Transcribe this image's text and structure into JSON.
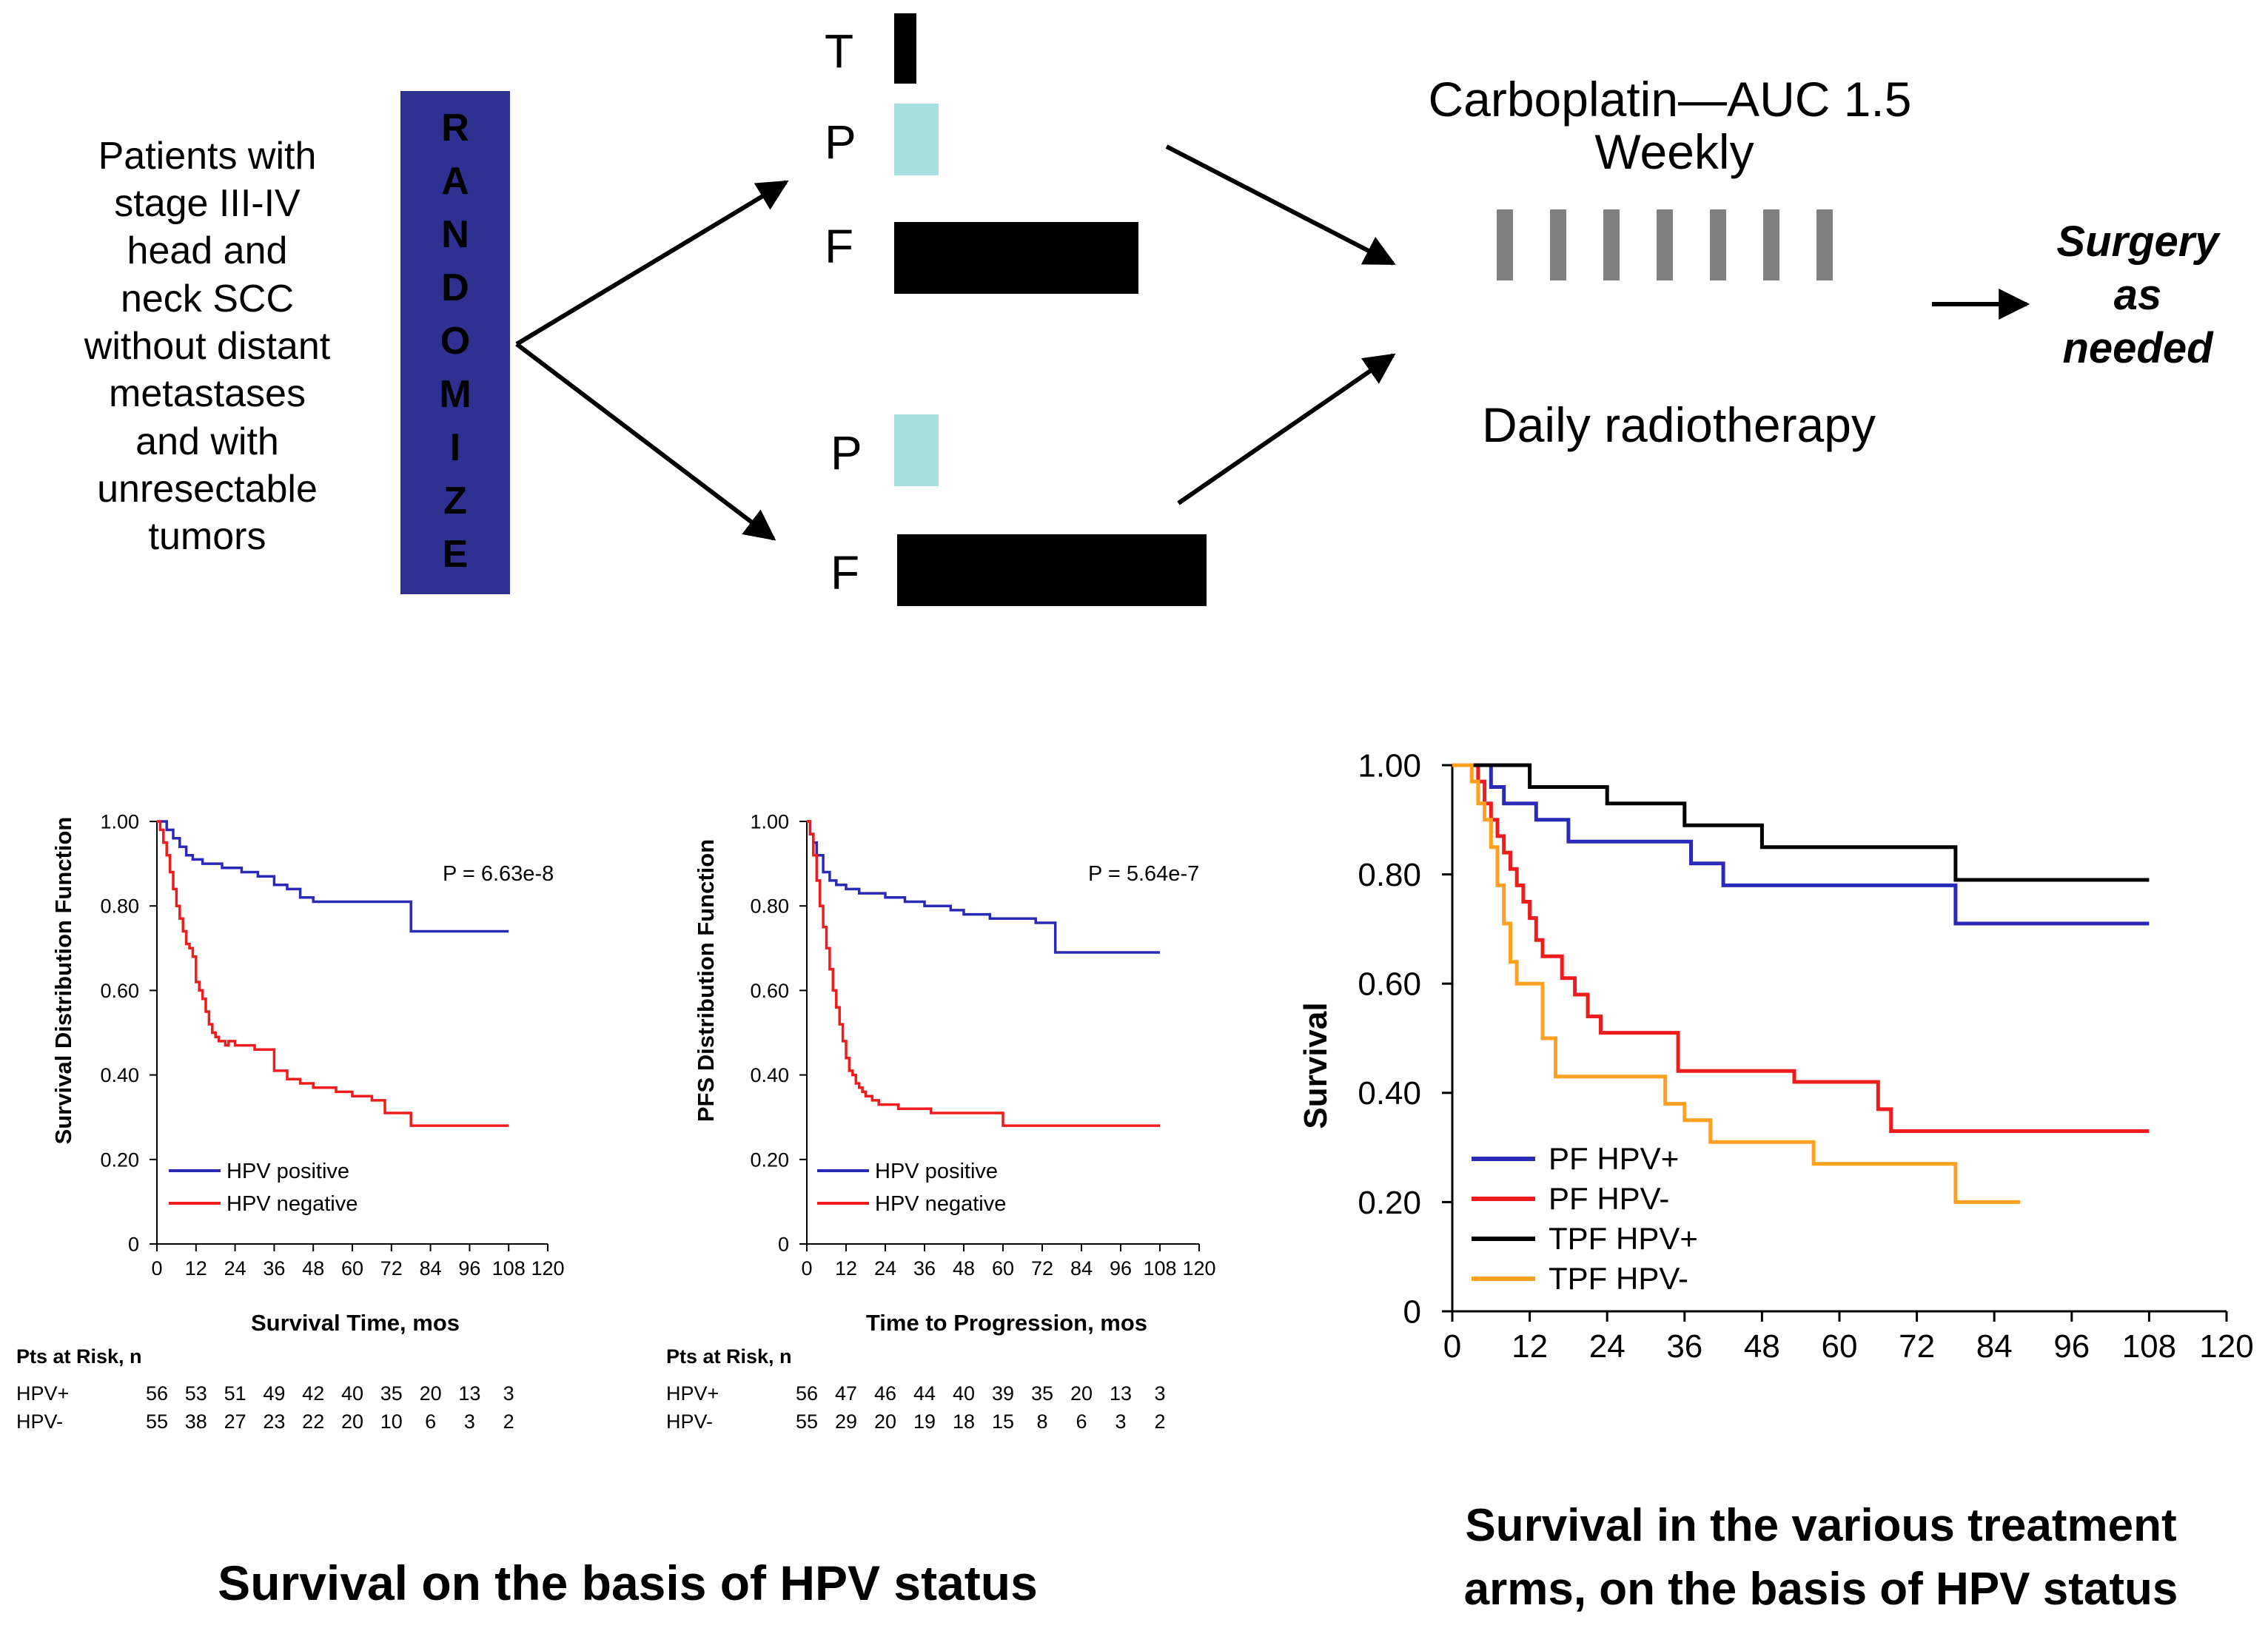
{
  "colors": {
    "randomize_box": "#2e3192",
    "randomize_text": "#000000",
    "drug_bar": "#000000",
    "cisplatin_bar": "#a7e0e0",
    "carbo_bar": "#808080",
    "hpv_pos": "#2a2ab8",
    "hpv_neg": "#ee1c1c",
    "pf_hpv_pos": "#2a2ab8",
    "pf_hpv_neg": "#ee1c1c",
    "tpf_hpv_pos": "#000000",
    "tpf_hpv_neg": "#ffa020"
  },
  "schema": {
    "patients_lines": [
      "Patients with",
      "stage III-IV",
      "head and",
      "neck SCC",
      "without distant",
      "metastases",
      "and with",
      "unresectable",
      "tumors"
    ],
    "randomize_letters": [
      "R",
      "A",
      "N",
      "D",
      "O",
      "M",
      "I",
      "Z",
      "E"
    ],
    "arm_a": {
      "t_label": "T",
      "p_label": "P",
      "f_label": "F"
    },
    "arm_b": {
      "p_label": "P",
      "f_label": "F"
    },
    "carboplatin_line1": "Carboplatin—AUC 1.5",
    "carboplatin_line2": "Weekly",
    "carbo_doses": 7,
    "radiotherapy_label": "Daily radiotherapy",
    "surgery_lines": [
      "Surgery",
      "as",
      "needed"
    ]
  },
  "captions": {
    "left": "Survival on the basis of HPV status",
    "right_line1": "Survival in the various treatment",
    "right_line2": "arms, on the basis of HPV status"
  },
  "chart_data": [
    {
      "type": "line",
      "title": "",
      "xlabel": "Survival Time, mos",
      "ylabel": "Survival Distribution Function",
      "xlim": [
        0,
        120
      ],
      "ylim": [
        0,
        1
      ],
      "xticks": [
        "0",
        "12",
        "24",
        "36",
        "48",
        "60",
        "72",
        "84",
        "96",
        "108",
        "120"
      ],
      "yticks": [
        "0",
        "0.20",
        "0.40",
        "0.60",
        "0.80",
        "1.00"
      ],
      "p_value": "P = 6.63e-8",
      "series": [
        {
          "name": "HPV positive",
          "color": "#2a2ab8",
          "x": [
            0,
            3,
            5,
            7,
            9,
            11,
            14,
            20,
            26,
            31,
            36,
            40,
            44,
            48,
            55,
            78,
            108
          ],
          "y": [
            1.0,
            0.98,
            0.96,
            0.94,
            0.92,
            0.91,
            0.9,
            0.89,
            0.88,
            0.87,
            0.85,
            0.84,
            0.82,
            0.81,
            0.81,
            0.74,
            0.74
          ]
        },
        {
          "name": "HPV negative",
          "color": "#ee1c1c",
          "x": [
            0,
            1,
            2,
            3,
            4,
            5,
            6,
            7,
            8,
            9,
            10,
            11,
            12,
            13,
            14,
            15,
            16,
            17,
            18,
            19,
            20,
            21,
            22,
            24,
            30,
            36,
            40,
            44,
            48,
            55,
            60,
            66,
            70,
            78,
            90,
            100,
            108
          ],
          "y": [
            1.0,
            0.98,
            0.95,
            0.92,
            0.88,
            0.84,
            0.8,
            0.77,
            0.74,
            0.71,
            0.7,
            0.68,
            0.62,
            0.6,
            0.58,
            0.55,
            0.52,
            0.5,
            0.49,
            0.48,
            0.48,
            0.47,
            0.48,
            0.47,
            0.46,
            0.41,
            0.39,
            0.38,
            0.37,
            0.36,
            0.35,
            0.34,
            0.31,
            0.28,
            0.28,
            0.28,
            0.28
          ]
        }
      ],
      "legend": [
        "HPV positive",
        "HPV negative"
      ],
      "risk_table": {
        "header": "Pts at Risk, n",
        "rows": [
          {
            "label": "HPV+",
            "values": [
              "56",
              "53",
              "51",
              "49",
              "42",
              "40",
              "35",
              "20",
              "13",
              "3"
            ]
          },
          {
            "label": "HPV-",
            "values": [
              "55",
              "38",
              "27",
              "23",
              "22",
              "20",
              "10",
              "6",
              "3",
              "2"
            ]
          }
        ]
      }
    },
    {
      "type": "line",
      "title": "",
      "xlabel": "Time to Progression, mos",
      "ylabel": "PFS Distribution Function",
      "xlim": [
        0,
        120
      ],
      "ylim": [
        0,
        1
      ],
      "xticks": [
        "0",
        "12",
        "24",
        "36",
        "48",
        "60",
        "72",
        "84",
        "96",
        "108",
        "120"
      ],
      "yticks": [
        "0",
        "0.20",
        "0.40",
        "0.60",
        "0.80",
        "1.00"
      ],
      "p_value": "P = 5.64e-7",
      "series": [
        {
          "name": "HPV positive",
          "color": "#2a2ab8",
          "x": [
            0,
            1,
            2,
            3,
            5,
            7,
            9,
            12,
            16,
            24,
            30,
            36,
            44,
            48,
            56,
            62,
            70,
            76,
            80,
            108
          ],
          "y": [
            1.0,
            0.97,
            0.95,
            0.92,
            0.88,
            0.86,
            0.85,
            0.84,
            0.83,
            0.82,
            0.81,
            0.8,
            0.79,
            0.78,
            0.77,
            0.77,
            0.76,
            0.69,
            0.69,
            0.69
          ]
        },
        {
          "name": "HPV negative",
          "color": "#ee1c1c",
          "x": [
            0,
            1,
            2,
            3,
            4,
            5,
            6,
            7,
            8,
            9,
            10,
            11,
            12,
            13,
            14,
            15,
            16,
            17,
            18,
            20,
            22,
            24,
            28,
            32,
            38,
            44,
            52,
            60,
            108
          ],
          "y": [
            1.0,
            0.97,
            0.92,
            0.86,
            0.8,
            0.75,
            0.7,
            0.65,
            0.6,
            0.56,
            0.52,
            0.48,
            0.44,
            0.41,
            0.4,
            0.38,
            0.37,
            0.36,
            0.35,
            0.34,
            0.33,
            0.33,
            0.32,
            0.32,
            0.31,
            0.31,
            0.31,
            0.28,
            0.28
          ]
        }
      ],
      "legend": [
        "HPV positive",
        "HPV negative"
      ],
      "risk_table": {
        "header": "Pts at Risk, n",
        "rows": [
          {
            "label": "HPV+",
            "values": [
              "56",
              "47",
              "46",
              "44",
              "40",
              "39",
              "35",
              "20",
              "13",
              "3"
            ]
          },
          {
            "label": "HPV-",
            "values": [
              "55",
              "29",
              "20",
              "19",
              "18",
              "15",
              "8",
              "6",
              "3",
              "2"
            ]
          }
        ]
      }
    },
    {
      "type": "line",
      "title": "",
      "xlabel": "",
      "ylabel": "Survival",
      "xlim": [
        0,
        120
      ],
      "ylim": [
        0,
        1
      ],
      "xticks": [
        "0",
        "12",
        "24",
        "36",
        "48",
        "60",
        "72",
        "84",
        "96",
        "108",
        "120"
      ],
      "yticks": [
        "0",
        "0.20",
        "0.40",
        "0.60",
        "0.80",
        "1.00"
      ],
      "series": [
        {
          "name": "PF HPV+",
          "color": "#2a2ab8",
          "x": [
            0,
            5,
            6,
            8,
            13,
            18,
            23,
            33,
            37,
            42,
            60,
            72,
            78,
            108
          ],
          "y": [
            1.0,
            1.0,
            0.96,
            0.93,
            0.9,
            0.86,
            0.86,
            0.86,
            0.82,
            0.78,
            0.78,
            0.78,
            0.71,
            0.71
          ]
        },
        {
          "name": "PF HPV-",
          "color": "#ee1c1c",
          "x": [
            0,
            4,
            5,
            6,
            7,
            8,
            9,
            10,
            11,
            12,
            13,
            14,
            15,
            17,
            19,
            21,
            23,
            30,
            35,
            44,
            53,
            62,
            66,
            68,
            108
          ],
          "y": [
            1.0,
            0.97,
            0.93,
            0.9,
            0.87,
            0.84,
            0.81,
            0.78,
            0.75,
            0.72,
            0.68,
            0.65,
            0.65,
            0.61,
            0.58,
            0.54,
            0.51,
            0.51,
            0.44,
            0.44,
            0.42,
            0.42,
            0.37,
            0.33,
            0.33
          ]
        },
        {
          "name": "TPF HPV+",
          "color": "#000000",
          "x": [
            0,
            8,
            12,
            18,
            24,
            36,
            48,
            60,
            72,
            78,
            96,
            108
          ],
          "y": [
            1.0,
            1.0,
            0.96,
            0.96,
            0.93,
            0.89,
            0.85,
            0.85,
            0.85,
            0.79,
            0.79,
            0.79
          ]
        },
        {
          "name": "TPF HPV-",
          "color": "#ffa020",
          "x": [
            0,
            3,
            4,
            5,
            6,
            7,
            8,
            9,
            10,
            12,
            14,
            16,
            18,
            24,
            30,
            33,
            36,
            40,
            48,
            56,
            68,
            78,
            88
          ],
          "y": [
            1.0,
            0.97,
            0.93,
            0.9,
            0.85,
            0.78,
            0.71,
            0.64,
            0.6,
            0.6,
            0.5,
            0.43,
            0.43,
            0.43,
            0.43,
            0.38,
            0.35,
            0.31,
            0.31,
            0.27,
            0.27,
            0.2,
            0.2
          ]
        }
      ],
      "legend": [
        "PF HPV+",
        "PF HPV-",
        "TPF HPV+",
        "TPF HPV-"
      ]
    }
  ]
}
